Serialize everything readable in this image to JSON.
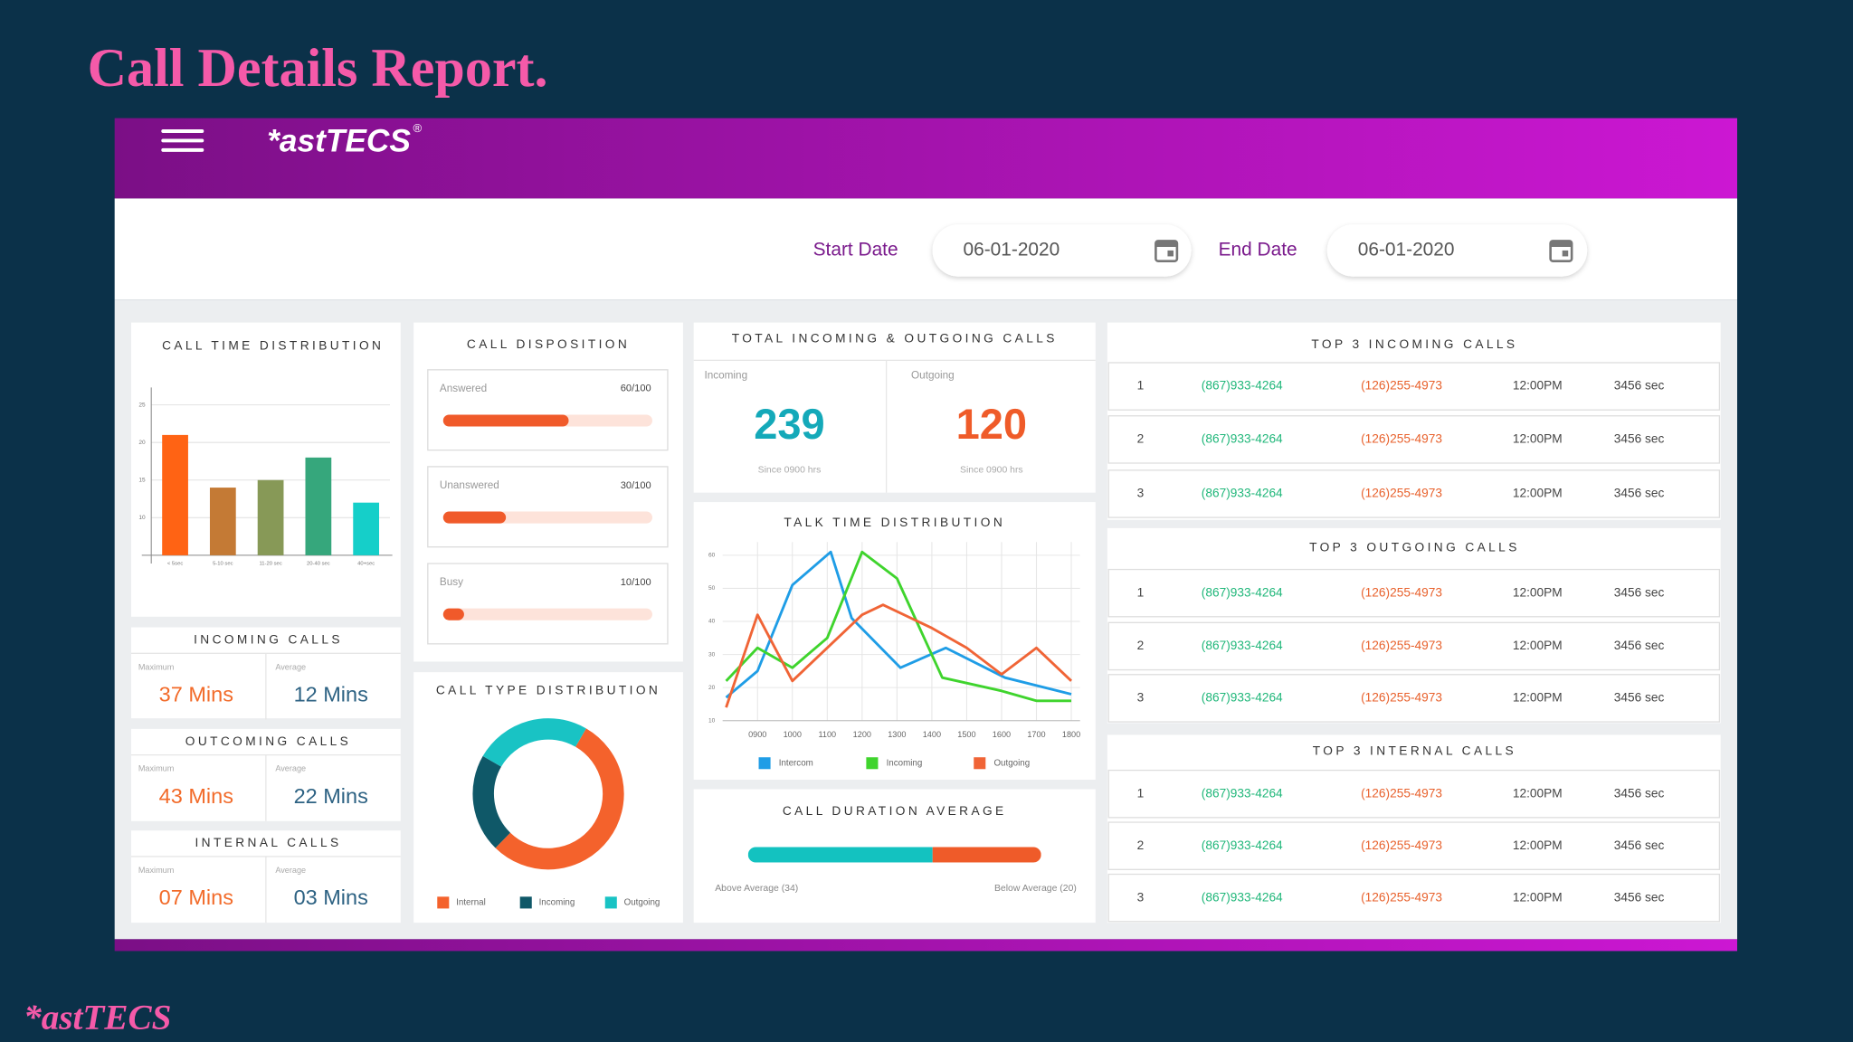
{
  "page_title": "Call Details Report.",
  "header": {
    "brand": "*astTECS",
    "mark": "®"
  },
  "filters": {
    "start_label": "Start Date",
    "start_value": "06-01-2020",
    "end_label": "End Date",
    "end_value": "06-01-2020"
  },
  "call_time_distribution": {
    "type": "bar",
    "title": "CALL TIME DISTRIBUTION",
    "categories": [
      "< 5sec",
      "5-10 sec",
      "11-20 sec",
      "20-40 sec",
      "40+sec"
    ],
    "values": [
      21,
      14,
      15,
      18,
      12
    ],
    "colors": [
      "#ff6314",
      "#c47a35",
      "#879957",
      "#36a77c",
      "#15cfc9"
    ],
    "ylim": [
      5,
      27
    ],
    "yticks": [
      10,
      15,
      20,
      25
    ],
    "grid": true
  },
  "summaries": [
    {
      "title": "INCOMING CALLS",
      "max_label": "Maximum",
      "max_value": "37 Mins",
      "avg_label": "Average",
      "avg_value": "12 Mins"
    },
    {
      "title": "OUTCOMING CALLS",
      "max_label": "Maximum",
      "max_value": "43 Mins",
      "avg_label": "Average",
      "avg_value": "22 Mins"
    },
    {
      "title": "INTERNAL CALLS",
      "max_label": "Maximum",
      "max_value": "07 Mins",
      "avg_label": "Average",
      "avg_value": "03 Mins"
    }
  ],
  "call_disposition": {
    "title": "CALL DISPOSITION",
    "items": [
      {
        "label": "Answered",
        "value": 60,
        "total": 100,
        "value_label": "60/100"
      },
      {
        "label": "Unanswered",
        "value": 30,
        "total": 100,
        "value_label": "30/100"
      },
      {
        "label": "Busy",
        "value": 10,
        "total": 100,
        "value_label": "10/100"
      }
    ]
  },
  "call_type_distribution": {
    "type": "pie",
    "title": "CALL TYPE DISTRIBUTION",
    "categories": [
      "Internal",
      "Incoming",
      "Outgoing"
    ],
    "values": [
      54,
      21,
      25
    ],
    "colors": [
      "#f4622c",
      "#0f5868",
      "#19c3c4"
    ]
  },
  "totals": {
    "title": "TOTAL INCOMING & OUTGOING CALLS",
    "items": [
      {
        "label": "Incoming",
        "value": 239,
        "note": "Since 0900 hrs",
        "color": "#14a9b9"
      },
      {
        "label": "Outgoing",
        "value": 120,
        "note": "Since 0900 hrs",
        "color": "#ef5b29"
      }
    ]
  },
  "talk_time_distribution": {
    "type": "line",
    "title": "TALK TIME DISTRIBUTION",
    "xlim": [
      8,
      18.25
    ],
    "xticks": [
      {
        "value": 9,
        "label": "0900"
      },
      {
        "value": 10,
        "label": "1000"
      },
      {
        "value": 11,
        "label": "1100"
      },
      {
        "value": 12,
        "label": "1200"
      },
      {
        "value": 13,
        "label": "1300"
      },
      {
        "value": 14,
        "label": "1400"
      },
      {
        "value": 15,
        "label": "1500"
      },
      {
        "value": 16,
        "label": "1600"
      },
      {
        "value": 17,
        "label": "1700"
      },
      {
        "value": 18,
        "label": "1800"
      }
    ],
    "ylim": [
      10,
      64
    ],
    "yticks": [
      10,
      20,
      30,
      40,
      50,
      60
    ],
    "grid": true,
    "series": [
      {
        "name": "Intercom",
        "color": "#1f9de6",
        "x": [
          8.1,
          9,
          10,
          11.1,
          11.7,
          13.1,
          14.4,
          16.1,
          18
        ],
        "values": [
          17,
          25,
          51,
          61,
          41,
          26,
          32,
          23,
          18
        ]
      },
      {
        "name": "Incoming",
        "color": "#3fd42d",
        "x": [
          8.1,
          9,
          10,
          11,
          12,
          13,
          14.3,
          16,
          17,
          18
        ],
        "values": [
          22,
          32,
          26,
          35,
          61,
          53,
          23,
          19,
          16,
          16
        ]
      },
      {
        "name": "Outgoing",
        "color": "#f06436",
        "x": [
          8.1,
          9,
          10,
          12,
          12.6,
          14,
          15,
          16,
          17,
          18
        ],
        "values": [
          14,
          42,
          22,
          42,
          45,
          38,
          32,
          24,
          32,
          22
        ]
      }
    ]
  },
  "call_duration_average": {
    "type": "bar",
    "title": "CALL DURATION AVERAGE",
    "values": [
      34,
      20
    ],
    "value_labels": [
      "Above Average (34)",
      "Below Average (20)"
    ],
    "colors": [
      "#13c2c0",
      "#ef5b29"
    ]
  },
  "top_calls": [
    {
      "title": "TOP 3 INCOMING CALLS",
      "rows": [
        [
          "1",
          "(867)933-4264",
          "(126)255-4973",
          "12:00PM",
          "3456 sec"
        ],
        [
          "2",
          "(867)933-4264",
          "(126)255-4973",
          "12:00PM",
          "3456 sec"
        ],
        [
          "3",
          "(867)933-4264",
          "(126)255-4973",
          "12:00PM",
          "3456 sec"
        ]
      ]
    },
    {
      "title": "TOP 3 OUTGOING CALLS",
      "rows": [
        [
          "1",
          "(867)933-4264",
          "(126)255-4973",
          "12:00PM",
          "3456 sec"
        ],
        [
          "2",
          "(867)933-4264",
          "(126)255-4973",
          "12:00PM",
          "3456 sec"
        ],
        [
          "3",
          "(867)933-4264",
          "(126)255-4973",
          "12:00PM",
          "3456 sec"
        ]
      ]
    },
    {
      "title": "TOP 3 INTERNAL CALLS",
      "rows": [
        [
          "1",
          "(867)933-4264",
          "(126)255-4973",
          "12:00PM",
          "3456 sec"
        ],
        [
          "2",
          "(867)933-4264",
          "(126)255-4973",
          "12:00PM",
          "3456 sec"
        ],
        [
          "3",
          "(867)933-4264",
          "(126)255-4973",
          "12:00PM",
          "3456 sec"
        ]
      ]
    }
  ],
  "footer_brand": "*astTECS"
}
